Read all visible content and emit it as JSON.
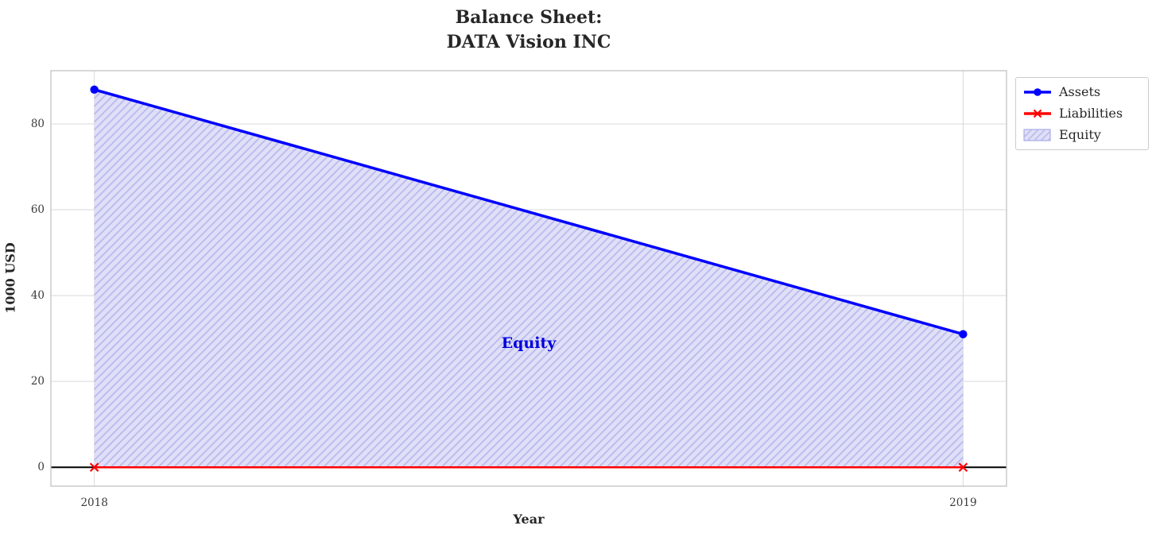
{
  "title": {
    "line1": "Balance Sheet:",
    "line2": "DATA Vision INC"
  },
  "chart_data": {
    "type": "line",
    "title": "Balance Sheet: DATA Vision INC",
    "x": [
      2018,
      2019
    ],
    "series": [
      {
        "name": "Assets",
        "values": [
          88,
          31
        ],
        "color": "#0000ff",
        "marker": "circle"
      },
      {
        "name": "Liabilities",
        "values": [
          0,
          0
        ],
        "color": "#ff0000",
        "marker": "x"
      }
    ],
    "area": {
      "name": "Equity",
      "between": [
        "Assets",
        "Liabilities"
      ],
      "fill": "#dfdff7",
      "hatch_color": "#b9b9ee",
      "values": [
        88,
        31
      ]
    },
    "annotation": {
      "text": "Equity",
      "x": 2018.5,
      "y": 29,
      "color": "#0000dd"
    },
    "xlabel": "Year",
    "ylabel": "1000 USD",
    "xticks": [
      "2018",
      "2019"
    ],
    "yticks": [
      "0",
      "20",
      "40",
      "60",
      "80"
    ],
    "ytick_values": [
      0,
      20,
      40,
      60,
      80
    ],
    "xtick_values": [
      2018,
      2019
    ],
    "xlim": [
      2017.95,
      2019.05
    ],
    "ylim": [
      -4.4,
      92.4
    ],
    "grid": true,
    "grid_color": "#d9d9d9",
    "spine_color": "#bfbfbf",
    "zero_line": true,
    "zero_line_color": "#000000",
    "legend_position": "upper-right-outside",
    "legend_entries": [
      "Assets",
      "Liabilities",
      "Equity"
    ]
  }
}
